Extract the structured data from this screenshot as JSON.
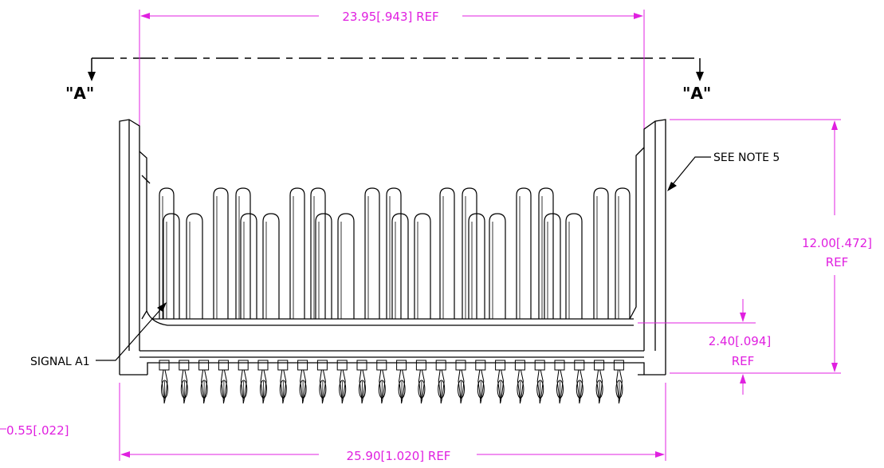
{
  "drawing": {
    "section_marker_left": "\"A\"",
    "section_marker_right": "\"A\"",
    "callouts": {
      "see_note": "SEE NOTE 5",
      "signal": "SIGNAL A1"
    },
    "dimensions": {
      "top_width": "23.95[.943] REF",
      "height": {
        "line1": "12.00[.472]",
        "line2": "REF"
      },
      "pin_offset": {
        "line1": "2.40[.094]",
        "line2": "REF"
      },
      "pin_pitch": "0.55[.022]",
      "overall_width": "25.90[1.020] REF"
    },
    "colors": {
      "dimension": "#e020e0",
      "outline": "#000000"
    }
  }
}
